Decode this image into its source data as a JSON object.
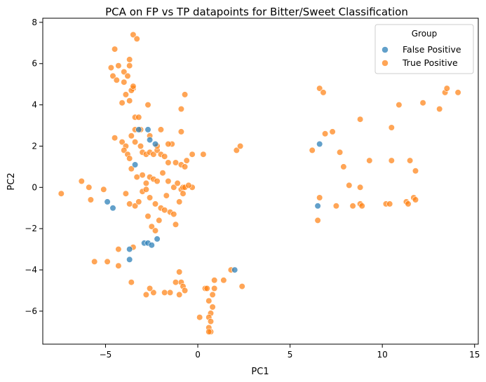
{
  "chart_data": {
    "type": "scatter",
    "title": "PCA on FP vs TP datapoints for Bitter/Sweet Classification",
    "xlabel": "PC1",
    "ylabel": "PC2",
    "xlim": [
      -8.4,
      15.2
    ],
    "ylim": [
      -7.6,
      8.2
    ],
    "xticks": [
      -5,
      0,
      5,
      10,
      15
    ],
    "yticks": [
      -6,
      -4,
      -2,
      0,
      2,
      4,
      6,
      8
    ],
    "grid": false,
    "legend": {
      "title": "Group",
      "placement": "top-right"
    },
    "series": [
      {
        "name": "False Positive",
        "color": "#1f77b4",
        "points": [
          [
            -4.9,
            -0.7
          ],
          [
            -4.6,
            -1.0
          ],
          [
            -3.7,
            -3.0
          ],
          [
            -3.7,
            -3.5
          ],
          [
            -3.4,
            1.1
          ],
          [
            -3.2,
            2.8
          ],
          [
            -2.7,
            2.8
          ],
          [
            -2.6,
            2.3
          ],
          [
            -2.3,
            2.1
          ],
          [
            -2.9,
            -2.7
          ],
          [
            -2.7,
            -2.7
          ],
          [
            -2.5,
            -2.8
          ],
          [
            -2.2,
            -2.5
          ],
          [
            2.0,
            -4.0
          ],
          [
            6.6,
            2.1
          ],
          [
            6.5,
            -0.9
          ]
        ]
      },
      {
        "name": "True Positive",
        "color": "#ff7f0e",
        "points": [
          [
            -7.4,
            -0.3
          ],
          [
            -6.3,
            0.3
          ],
          [
            -5.9,
            0.0
          ],
          [
            -5.8,
            -0.6
          ],
          [
            -5.1,
            -0.1
          ],
          [
            -5.6,
            -3.6
          ],
          [
            -4.9,
            -3.6
          ],
          [
            -4.3,
            -3.0
          ],
          [
            -4.3,
            -3.8
          ],
          [
            -3.6,
            -4.6
          ],
          [
            -3.5,
            -2.9
          ],
          [
            -4.7,
            5.8
          ],
          [
            -4.6,
            5.4
          ],
          [
            -4.5,
            6.7
          ],
          [
            -4.4,
            5.2
          ],
          [
            -4.3,
            5.9
          ],
          [
            -4.0,
            5.6
          ],
          [
            -4.0,
            5.1
          ],
          [
            -3.9,
            4.5
          ],
          [
            -3.8,
            5.4
          ],
          [
            -3.7,
            5.9
          ],
          [
            -3.7,
            6.2
          ],
          [
            -3.5,
            4.8
          ],
          [
            -3.6,
            4.7
          ],
          [
            -3.5,
            7.4
          ],
          [
            -3.3,
            7.2
          ],
          [
            -3.4,
            3.4
          ],
          [
            -3.2,
            3.4
          ],
          [
            -3.5,
            4.9
          ],
          [
            -3.7,
            4.2
          ],
          [
            -4.1,
            4.1
          ],
          [
            -4.5,
            2.4
          ],
          [
            -4.1,
            2.2
          ],
          [
            -3.9,
            2.0
          ],
          [
            -4.0,
            1.8
          ],
          [
            -3.8,
            1.6
          ],
          [
            -3.6,
            2.5
          ],
          [
            -3.4,
            2.2
          ],
          [
            -3.1,
            2.0
          ],
          [
            -3.0,
            1.7
          ],
          [
            -2.8,
            1.6
          ],
          [
            -2.6,
            1.7
          ],
          [
            -2.4,
            1.6
          ],
          [
            -2.2,
            1.8
          ],
          [
            -2.0,
            1.6
          ],
          [
            -1.8,
            1.5
          ],
          [
            -1.6,
            1.2
          ],
          [
            -1.4,
            2.1
          ],
          [
            -1.2,
            1.2
          ],
          [
            -0.9,
            1.1
          ],
          [
            -3.7,
            1.4
          ],
          [
            -3.6,
            0.9
          ],
          [
            -3.3,
            0.5
          ],
          [
            -3.0,
            0.6
          ],
          [
            -2.8,
            0.2
          ],
          [
            -2.6,
            0.5
          ],
          [
            -2.4,
            0.4
          ],
          [
            -2.2,
            0.3
          ],
          [
            -1.9,
            0.7
          ],
          [
            -1.6,
            0.3
          ],
          [
            -1.3,
            0.0
          ],
          [
            -1.1,
            0.2
          ],
          [
            -0.9,
            -0.1
          ],
          [
            -0.8,
            0.0
          ],
          [
            -0.7,
            0.0
          ],
          [
            -3.9,
            -0.3
          ],
          [
            -3.7,
            -0.8
          ],
          [
            -3.4,
            -0.9
          ],
          [
            -3.2,
            -0.7
          ],
          [
            -3.0,
            -0.2
          ],
          [
            -2.8,
            -0.1
          ],
          [
            -2.6,
            -0.5
          ],
          [
            -2.3,
            -0.8
          ],
          [
            -2.0,
            -1.0
          ],
          [
            -1.7,
            -0.4
          ],
          [
            -1.5,
            -1.2
          ],
          [
            -1.3,
            -1.3
          ],
          [
            -1.2,
            -1.8
          ],
          [
            -1.0,
            -0.7
          ],
          [
            -0.8,
            -0.3
          ],
          [
            -2.7,
            -1.4
          ],
          [
            -2.5,
            -1.9
          ],
          [
            -2.3,
            -2.1
          ],
          [
            -2.1,
            -1.6
          ],
          [
            -1.8,
            -1.1
          ],
          [
            -3.4,
            2.8
          ],
          [
            -3.1,
            2.8
          ],
          [
            -2.6,
            2.5
          ],
          [
            -2.2,
            2.0
          ],
          [
            -2.0,
            2.8
          ],
          [
            -1.6,
            2.1
          ],
          [
            -0.9,
            2.7
          ],
          [
            -0.7,
            1.0
          ],
          [
            -0.6,
            1.3
          ],
          [
            -0.3,
            1.6
          ],
          [
            -0.9,
            3.8
          ],
          [
            -0.7,
            4.5
          ],
          [
            -2.7,
            4.0
          ],
          [
            -0.3,
            0.0
          ],
          [
            -0.5,
            0.1
          ],
          [
            0.3,
            1.6
          ],
          [
            2.1,
            1.8
          ],
          [
            2.3,
            2.0
          ],
          [
            -1.0,
            -4.1
          ],
          [
            -1.2,
            -4.6
          ],
          [
            -0.9,
            -4.6
          ],
          [
            -0.8,
            -4.8
          ],
          [
            -0.7,
            -5.0
          ],
          [
            -1.0,
            -5.2
          ],
          [
            -1.5,
            -5.1
          ],
          [
            -1.8,
            -5.1
          ],
          [
            -2.4,
            -5.1
          ],
          [
            -2.6,
            -4.9
          ],
          [
            -2.8,
            -5.2
          ],
          [
            0.9,
            -4.5
          ],
          [
            1.4,
            -4.5
          ],
          [
            1.8,
            -4.0
          ],
          [
            2.4,
            -4.8
          ],
          [
            0.4,
            -4.9
          ],
          [
            0.5,
            -4.9
          ],
          [
            0.9,
            -4.9
          ],
          [
            0.8,
            -5.2
          ],
          [
            0.6,
            -5.5
          ],
          [
            0.8,
            -5.8
          ],
          [
            0.7,
            -6.1
          ],
          [
            0.6,
            -6.3
          ],
          [
            0.7,
            -6.5
          ],
          [
            0.6,
            -6.8
          ],
          [
            0.7,
            -7.0
          ],
          [
            0.6,
            -7.0
          ],
          [
            0.1,
            -6.3
          ],
          [
            6.6,
            4.8
          ],
          [
            6.8,
            4.6
          ],
          [
            6.2,
            1.8
          ],
          [
            6.9,
            2.6
          ],
          [
            7.3,
            2.7
          ],
          [
            7.7,
            1.7
          ],
          [
            7.9,
            1.0
          ],
          [
            8.8,
            3.3
          ],
          [
            9.3,
            1.3
          ],
          [
            8.2,
            0.1
          ],
          [
            8.8,
            0.0
          ],
          [
            10.5,
            1.3
          ],
          [
            10.5,
            2.9
          ],
          [
            10.9,
            4.0
          ],
          [
            12.2,
            4.1
          ],
          [
            13.1,
            3.8
          ],
          [
            13.4,
            4.6
          ],
          [
            13.5,
            4.8
          ],
          [
            14.1,
            4.6
          ],
          [
            11.5,
            1.3
          ],
          [
            11.8,
            0.8
          ],
          [
            6.6,
            -0.5
          ],
          [
            6.5,
            -1.6
          ],
          [
            7.5,
            -0.9
          ],
          [
            8.4,
            -0.9
          ],
          [
            8.8,
            -0.8
          ],
          [
            8.9,
            -0.9
          ],
          [
            10.2,
            -0.8
          ],
          [
            10.4,
            -0.8
          ],
          [
            11.3,
            -0.7
          ],
          [
            11.4,
            -0.8
          ],
          [
            11.7,
            -0.5
          ],
          [
            11.8,
            -0.6
          ]
        ]
      }
    ]
  }
}
